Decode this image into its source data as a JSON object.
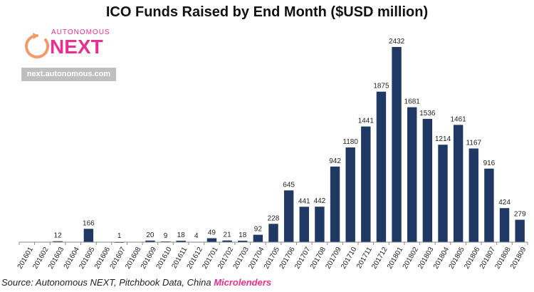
{
  "chart_data": {
    "type": "bar",
    "title": "ICO Funds Raised by End Month ($USD million)",
    "xlabel": "",
    "ylabel": "",
    "ylim": [
      0,
      2600
    ],
    "grid": false,
    "legend": "none",
    "bar_color": "#1f3864",
    "categories": [
      "201601",
      "201602",
      "201603",
      "201604",
      "201605",
      "201606",
      "201607",
      "201608",
      "201609",
      "201610",
      "201611",
      "201612",
      "201701",
      "201702",
      "201703",
      "201704",
      "201705",
      "201706",
      "201707",
      "201708",
      "201709",
      "201710",
      "201711",
      "201712",
      "201801",
      "201802",
      "201803",
      "201804",
      "201805",
      "201806",
      "201807",
      "201808",
      "201809"
    ],
    "values": [
      0,
      0,
      12,
      0,
      166,
      0,
      1,
      0,
      20,
      9,
      18,
      4,
      49,
      21,
      18,
      92,
      228,
      645,
      441,
      442,
      942,
      1180,
      1441,
      1875,
      2432,
      1681,
      1536,
      1214,
      1461,
      1167,
      916,
      424,
      279
    ],
    "labels": [
      "",
      "",
      "12",
      "",
      "166",
      "",
      "1",
      "",
      "20",
      "9",
      "18",
      "4",
      "49",
      "21",
      "18",
      "92",
      "228",
      "645",
      "441",
      "442",
      "942",
      "1180",
      "1441",
      "1875",
      "2432",
      "1681",
      "1536",
      "1214",
      "1461",
      "1167",
      "916",
      "424",
      "279"
    ]
  },
  "logo": {
    "top_text": "AUTONOMOUS",
    "main_text": "NEXT",
    "url": "next.autonomous.com",
    "color": "#e8318f",
    "icon": "circular-arrow-icon"
  },
  "source": {
    "prefix": "Source: Autonomous NEXT, Pitchbook Data, China ",
    "highlight": "Microlenders",
    "highlight_color": "#e8318f"
  }
}
